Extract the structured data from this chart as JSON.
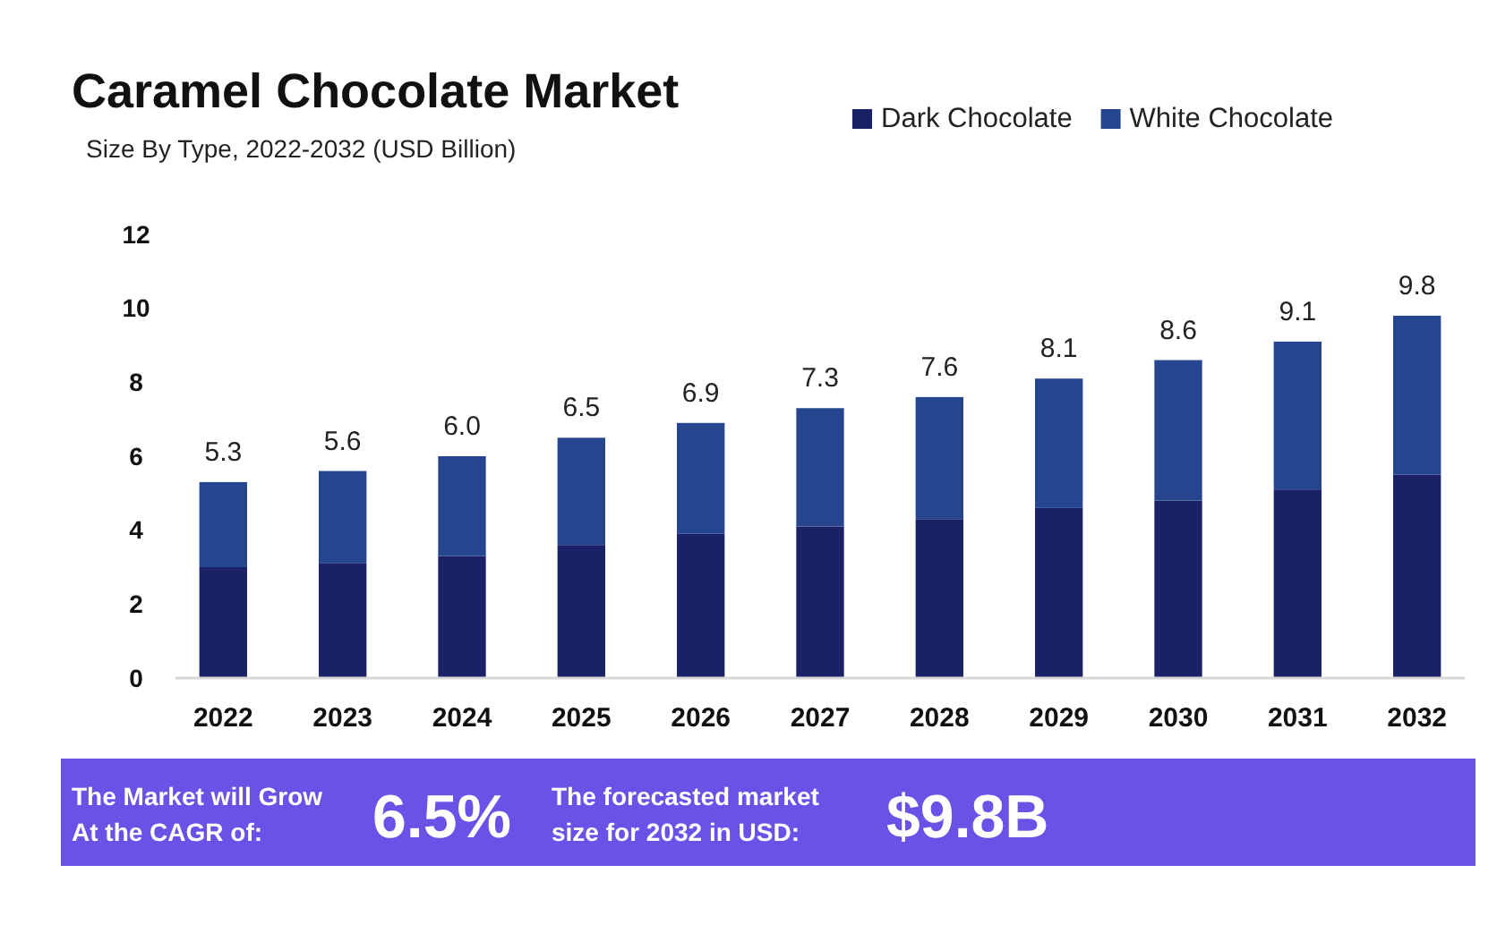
{
  "chart_data": {
    "type": "bar",
    "title": "Caramel Chocolate Market",
    "subtitle": "Size By Type, 2022-2032 (USD Billion)",
    "categories": [
      "2022",
      "2023",
      "2024",
      "2025",
      "2026",
      "2027",
      "2028",
      "2029",
      "2030",
      "2031",
      "2032"
    ],
    "stacked": true,
    "series": [
      {
        "name": "Dark Chocolate",
        "color": "#1a2166",
        "values": [
          3.0,
          3.1,
          3.3,
          3.6,
          3.9,
          4.1,
          4.3,
          4.6,
          4.8,
          5.1,
          5.5
        ]
      },
      {
        "name": "White Chocolate",
        "color": "#25468f",
        "values": [
          2.3,
          2.5,
          2.7,
          2.9,
          3.0,
          3.2,
          3.3,
          3.5,
          3.8,
          4.0,
          4.3
        ]
      }
    ],
    "totals": [
      "5.3",
      "5.6",
      "6.0",
      "6.5",
      "6.9",
      "7.3",
      "7.6",
      "8.1",
      "8.6",
      "9.1",
      "9.8"
    ],
    "ylim": [
      0,
      12
    ],
    "yticks": [
      0,
      2,
      4,
      6,
      8,
      10,
      12
    ],
    "grid": false,
    "legend": "top right",
    "annotations": [
      "The Market will Grow At the CAGR of:",
      "6.5%",
      "The forecasted market size for 2032 in USD:",
      "$9.8B"
    ]
  }
}
